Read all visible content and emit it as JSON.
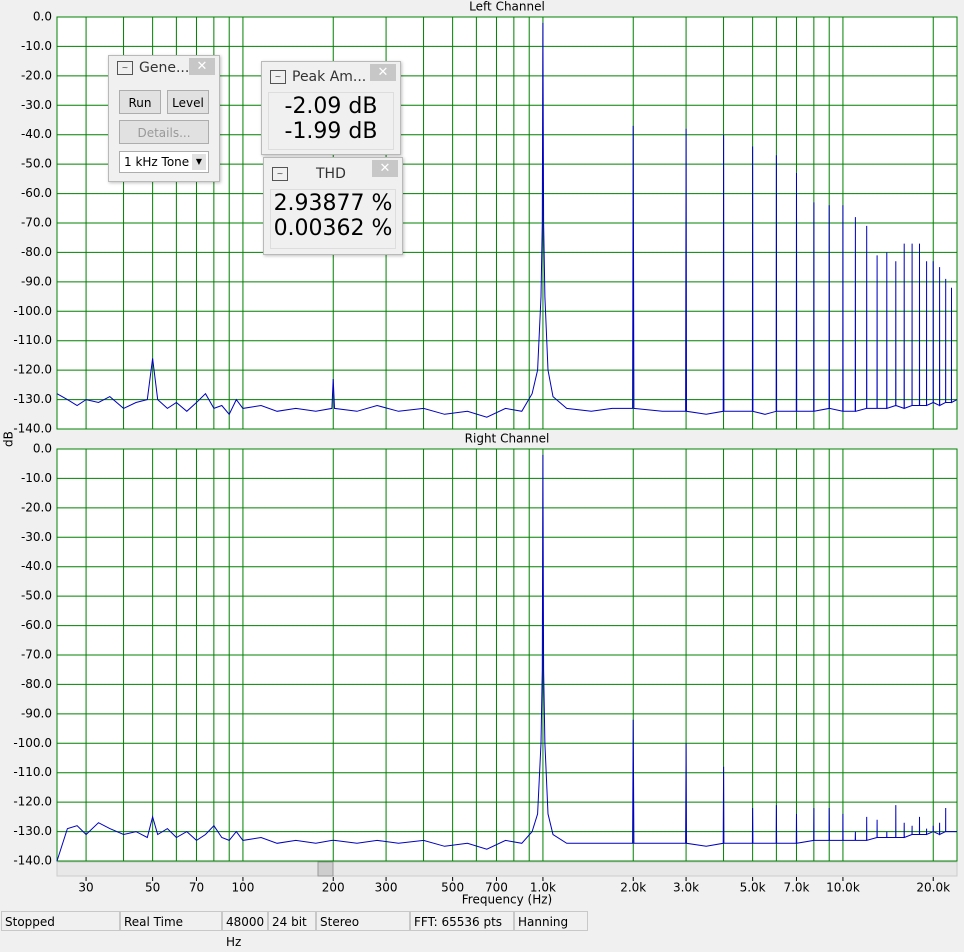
{
  "chart_data": [
    {
      "type": "line",
      "title": "Left Channel",
      "ylabel": "dB",
      "xscale": "log",
      "xlim": [
        24,
        24000
      ],
      "ylim": [
        -140,
        0
      ],
      "grid": true,
      "xgrid": [
        30,
        40,
        50,
        60,
        70,
        80,
        90,
        100,
        200,
        300,
        400,
        500,
        600,
        700,
        800,
        900,
        1000,
        2000,
        3000,
        4000,
        5000,
        6000,
        7000,
        8000,
        9000,
        10000,
        20000
      ],
      "yticks": [
        {
          "value": 0,
          "label": "0.0"
        },
        {
          "value": -10,
          "label": "-10.0"
        },
        {
          "value": -20,
          "label": "-20.0"
        },
        {
          "value": -30,
          "label": "-30.0"
        },
        {
          "value": -40,
          "label": "-40.0"
        },
        {
          "value": -50,
          "label": "-50.0"
        },
        {
          "value": -60,
          "label": "-60.0"
        },
        {
          "value": -70,
          "label": "-70.0"
        },
        {
          "value": -80,
          "label": "-80.0"
        },
        {
          "value": -90,
          "label": "-90.0"
        },
        {
          "value": -100,
          "label": "-100.0"
        },
        {
          "value": -110,
          "label": "-110.0"
        },
        {
          "value": -120,
          "label": "-120.0"
        },
        {
          "value": -130,
          "label": "-130.0"
        },
        {
          "value": -140,
          "label": "-140.0"
        }
      ],
      "x": [
        24,
        26,
        28,
        30,
        33,
        36,
        40,
        44,
        48,
        50,
        52,
        56,
        60,
        65,
        70,
        75,
        80,
        85,
        90,
        95,
        100,
        115,
        130,
        150,
        175,
        198,
        200,
        202,
        240,
        280,
        330,
        400,
        470,
        560,
        650,
        750,
        850,
        920,
        960,
        985,
        995,
        1000,
        1005,
        1015,
        1040,
        1080,
        1200,
        1450,
        1700,
        1990,
        2000,
        2010,
        2500,
        2990,
        3000,
        3010,
        3500,
        3990,
        4000,
        4010,
        4500,
        4990,
        5000,
        5010,
        5500,
        5990,
        6000,
        6010,
        6990,
        7000,
        7010,
        7990,
        8000,
        8010,
        8990,
        9000,
        9010,
        9990,
        10000,
        10010,
        10990,
        11000,
        11010,
        11990,
        12000,
        12010,
        12990,
        13000,
        13010,
        13990,
        14000,
        14010,
        14990,
        15000,
        15010,
        15990,
        16000,
        16010,
        16990,
        17000,
        17010,
        17990,
        18000,
        18010,
        18990,
        19000,
        19010,
        19990,
        20000,
        20010,
        20990,
        21000,
        21010,
        21990,
        22000,
        22010,
        22990,
        23000,
        23010,
        24000
      ],
      "series": [
        {
          "color": "#0000c0",
          "values": [
            -128,
            -130,
            -132,
            -130,
            -131,
            -129,
            -133,
            -131,
            -130,
            -116,
            -130,
            -133,
            -131,
            -134,
            -131,
            -128,
            -133,
            -132,
            -135,
            -130,
            -133,
            -132,
            -134,
            -133,
            -134,
            -133,
            -123,
            -133,
            -134,
            -132,
            -134,
            -133,
            -135,
            -134,
            -136,
            -133,
            -134,
            -128,
            -120,
            -95,
            -70,
            -2,
            -70,
            -95,
            -120,
            -129,
            -133,
            -134,
            -133,
            -133,
            -37,
            -133,
            -134,
            -134,
            -38,
            -134,
            -135,
            -134,
            -40,
            -134,
            -134,
            -134,
            -44,
            -134,
            -135,
            -134,
            -47,
            -134,
            -134,
            -53,
            -134,
            -134,
            -63,
            -134,
            -133,
            -64,
            -133,
            -134,
            -64,
            -134,
            -134,
            -68,
            -134,
            -133,
            -71,
            -133,
            -133,
            -81,
            -133,
            -133,
            -80,
            -133,
            -132,
            -83,
            -132,
            -133,
            -77,
            -133,
            -132,
            -77,
            -132,
            -132,
            -77,
            -132,
            -132,
            -83,
            -132,
            -131,
            -83,
            -131,
            -132,
            -85,
            -132,
            -131,
            -89,
            -131,
            -131,
            -92,
            -131,
            -130
          ]
        }
      ]
    },
    {
      "type": "line",
      "title": "Right Channel",
      "xlabel": "Frequency (Hz)",
      "xscale": "log",
      "xlim": [
        24,
        24000
      ],
      "ylim": [
        -140,
        0
      ],
      "grid": true,
      "xgrid": [
        30,
        40,
        50,
        60,
        70,
        80,
        90,
        100,
        200,
        300,
        400,
        500,
        600,
        700,
        800,
        900,
        1000,
        2000,
        3000,
        4000,
        5000,
        6000,
        7000,
        8000,
        9000,
        10000,
        20000
      ],
      "xticks": [
        30,
        50,
        70,
        100,
        200,
        300,
        500,
        700,
        {
          "value": 1000,
          "label": "1.0k"
        },
        {
          "value": 2000,
          "label": "2.0k"
        },
        {
          "value": 3000,
          "label": "3.0k"
        },
        {
          "value": 5000,
          "label": "5.0k"
        },
        {
          "value": 7000,
          "label": "7.0k"
        },
        {
          "value": 10000,
          "label": "10.0k"
        },
        {
          "value": 20000,
          "label": "20.0k"
        }
      ],
      "yticks": [
        {
          "value": 0,
          "label": "0.0"
        },
        {
          "value": -10,
          "label": "-10.0"
        },
        {
          "value": -20,
          "label": "-20.0"
        },
        {
          "value": -30,
          "label": "-30.0"
        },
        {
          "value": -40,
          "label": "-40.0"
        },
        {
          "value": -50,
          "label": "-50.0"
        },
        {
          "value": -60,
          "label": "-60.0"
        },
        {
          "value": -70,
          "label": "-70.0"
        },
        {
          "value": -80,
          "label": "-80.0"
        },
        {
          "value": -90,
          "label": "-90.0"
        },
        {
          "value": -100,
          "label": "-100.0"
        },
        {
          "value": -110,
          "label": "-110.0"
        },
        {
          "value": -120,
          "label": "-120.0"
        },
        {
          "value": -130,
          "label": "-130.0"
        },
        {
          "value": -140,
          "label": "-140.0"
        }
      ],
      "x": [
        24,
        26,
        28,
        30,
        33,
        36,
        40,
        44,
        48,
        50,
        52,
        56,
        60,
        65,
        70,
        75,
        80,
        85,
        90,
        95,
        100,
        115,
        130,
        150,
        175,
        198,
        200,
        202,
        240,
        280,
        330,
        400,
        470,
        560,
        650,
        750,
        850,
        920,
        960,
        985,
        995,
        1000,
        1005,
        1015,
        1040,
        1080,
        1200,
        1450,
        1700,
        1990,
        2000,
        2010,
        2500,
        2990,
        3000,
        3010,
        3500,
        3990,
        4000,
        4010,
        4500,
        4990,
        5000,
        5010,
        5500,
        5990,
        6000,
        6010,
        6990,
        7000,
        7010,
        7990,
        8000,
        8010,
        8990,
        9000,
        9010,
        9990,
        10000,
        10010,
        10990,
        11000,
        11010,
        11990,
        12000,
        12010,
        12990,
        13000,
        13010,
        13990,
        14000,
        14010,
        14990,
        15000,
        15010,
        15990,
        16000,
        16010,
        16990,
        17000,
        17010,
        17990,
        18000,
        18010,
        18990,
        19000,
        19010,
        19990,
        20000,
        20010,
        20990,
        21000,
        21010,
        21990,
        22000,
        22010,
        22990,
        23000,
        23010,
        24000
      ],
      "series": [
        {
          "color": "#0000c0",
          "values": [
            -140,
            -129,
            -128,
            -131,
            -127,
            -129,
            -131,
            -130,
            -132,
            -125,
            -131,
            -129,
            -132,
            -130,
            -133,
            -131,
            -128,
            -132,
            -133,
            -130,
            -133,
            -132,
            -134,
            -133,
            -134,
            -133,
            -133,
            -133,
            -134,
            -133,
            -134,
            -133,
            -135,
            -134,
            -136,
            -133,
            -134,
            -130,
            -124,
            -100,
            -75,
            -2,
            -75,
            -100,
            -124,
            -131,
            -134,
            -134,
            -134,
            -134,
            -92,
            -134,
            -134,
            -134,
            -100,
            -134,
            -135,
            -134,
            -108,
            -134,
            -134,
            -134,
            -122,
            -134,
            -134,
            -134,
            -121,
            -134,
            -134,
            -124,
            -134,
            -133,
            -122,
            -133,
            -133,
            -122,
            -133,
            -133,
            -124,
            -133,
            -133,
            -130,
            -133,
            -133,
            -125,
            -133,
            -132,
            -126,
            -132,
            -132,
            -130,
            -132,
            -132,
            -121,
            -132,
            -132,
            -127,
            -132,
            -131,
            -128,
            -131,
            -131,
            -125,
            -131,
            -131,
            -129,
            -131,
            -130,
            -128,
            -130,
            -131,
            -127,
            -131,
            -130,
            -122,
            -130,
            -130,
            -130,
            -130,
            -130
          ]
        }
      ]
    }
  ],
  "windows": {
    "generator": {
      "title": "Gene...",
      "buttons": [
        "Run",
        "Level",
        "Details..."
      ],
      "dropdown": "1 kHz Tone"
    },
    "peak": {
      "title": "Peak Am...",
      "values": [
        "-2.09 dB",
        "-1.99 dB"
      ]
    },
    "thd": {
      "title": "THD",
      "values": [
        "2.93877 %",
        "0.00362 %"
      ]
    }
  },
  "status_bar": [
    "Stopped",
    "Real Time",
    "48000 Hz",
    "24 bit",
    "Stereo",
    "FFT: 65536 pts",
    "Hanning"
  ]
}
